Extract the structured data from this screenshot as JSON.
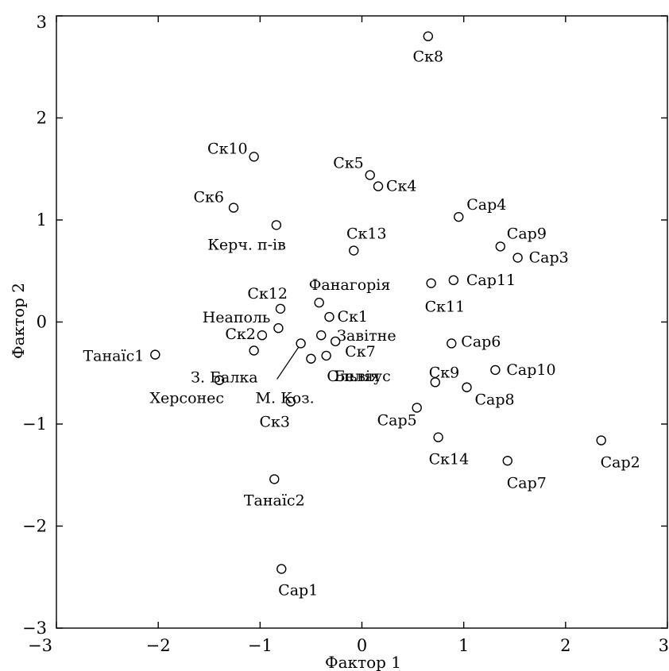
{
  "chart_data": {
    "type": "scatter",
    "xlabel": "Фактор 1",
    "ylabel": "Фактор 2",
    "xlim": [
      -3,
      3
    ],
    "ylim": [
      -3,
      3
    ],
    "xticks": [
      -3,
      -2,
      -1,
      0,
      1,
      2,
      3
    ],
    "yticks": [
      -3,
      -2,
      -1,
      0,
      1,
      2,
      3
    ],
    "x_tick_labels": [
      "−3",
      "−2",
      "−1",
      "0",
      "1",
      "2",
      "3"
    ],
    "y_tick_labels": [
      "−3",
      "−2",
      "−1",
      "0",
      "1",
      "2",
      "3"
    ],
    "grid": false,
    "legend": "none",
    "points": [
      {
        "label": "Ск8",
        "x": 0.65,
        "y": 2.8
      },
      {
        "label": "Ск10",
        "x": -1.06,
        "y": 1.62
      },
      {
        "label": "Ск5",
        "x": 0.08,
        "y": 1.44
      },
      {
        "label": "Ск4",
        "x": 0.16,
        "y": 1.33
      },
      {
        "label": "Ск6",
        "x": -1.26,
        "y": 1.12
      },
      {
        "label": "Сар4",
        "x": 0.95,
        "y": 1.03
      },
      {
        "label": "Керч. п-ів",
        "x": -0.84,
        "y": 0.95
      },
      {
        "label": "Сар9",
        "x": 1.36,
        "y": 0.74
      },
      {
        "label": "Сар3",
        "x": 1.53,
        "y": 0.63
      },
      {
        "label": "Ск13",
        "x": -0.08,
        "y": 0.7
      },
      {
        "label": "Сар11",
        "x": 0.9,
        "y": 0.41
      },
      {
        "label": "Ск11",
        "x": 0.68,
        "y": 0.38
      },
      {
        "label": "Фанагорія",
        "x": -0.42,
        "y": 0.19
      },
      {
        "label": "Ск12",
        "x": -0.8,
        "y": 0.13
      },
      {
        "label": "Ск1",
        "x": -0.32,
        "y": 0.05
      },
      {
        "label": "Неаполь",
        "x": -0.82,
        "y": -0.06
      },
      {
        "label": "Ск2",
        "x": -0.98,
        "y": -0.13
      },
      {
        "label": "Завітне",
        "x": -0.4,
        "y": -0.13
      },
      {
        "label": "Ск7",
        "x": -0.26,
        "y": -0.19
      },
      {
        "label": "Сар6",
        "x": 0.88,
        "y": -0.21
      },
      {
        "label": "Танаїс1",
        "x": -2.03,
        "y": -0.32
      },
      {
        "label": "З. Балка",
        "x": -1.06,
        "y": -0.28
      },
      {
        "label": "Беляус",
        "x": -0.35,
        "y": -0.33
      },
      {
        "label": "Ольвія",
        "x": -0.5,
        "y": -0.36
      },
      {
        "label": "Ск9",
        "x": 0.72,
        "y": -0.59
      },
      {
        "label": "Сар10",
        "x": 1.31,
        "y": -0.47
      },
      {
        "label": "Херсонес",
        "x": -1.4,
        "y": -0.57
      },
      {
        "label": "М. Коз.",
        "x": -0.6,
        "y": -0.21
      },
      {
        "label": "Сар8",
        "x": 1.03,
        "y": -0.64
      },
      {
        "label": "Ск3",
        "x": -0.7,
        "y": -0.78
      },
      {
        "label": "Сар5",
        "x": 0.54,
        "y": -0.84
      },
      {
        "label": "Ск14",
        "x": 0.75,
        "y": -1.13
      },
      {
        "label": "Сар2",
        "x": 2.35,
        "y": -1.16
      },
      {
        "label": "Сар7",
        "x": 1.43,
        "y": -1.36
      },
      {
        "label": "Танаїс2",
        "x": -0.86,
        "y": -1.54
      },
      {
        "label": "Сар1",
        "x": -0.79,
        "y": -2.42
      }
    ]
  }
}
